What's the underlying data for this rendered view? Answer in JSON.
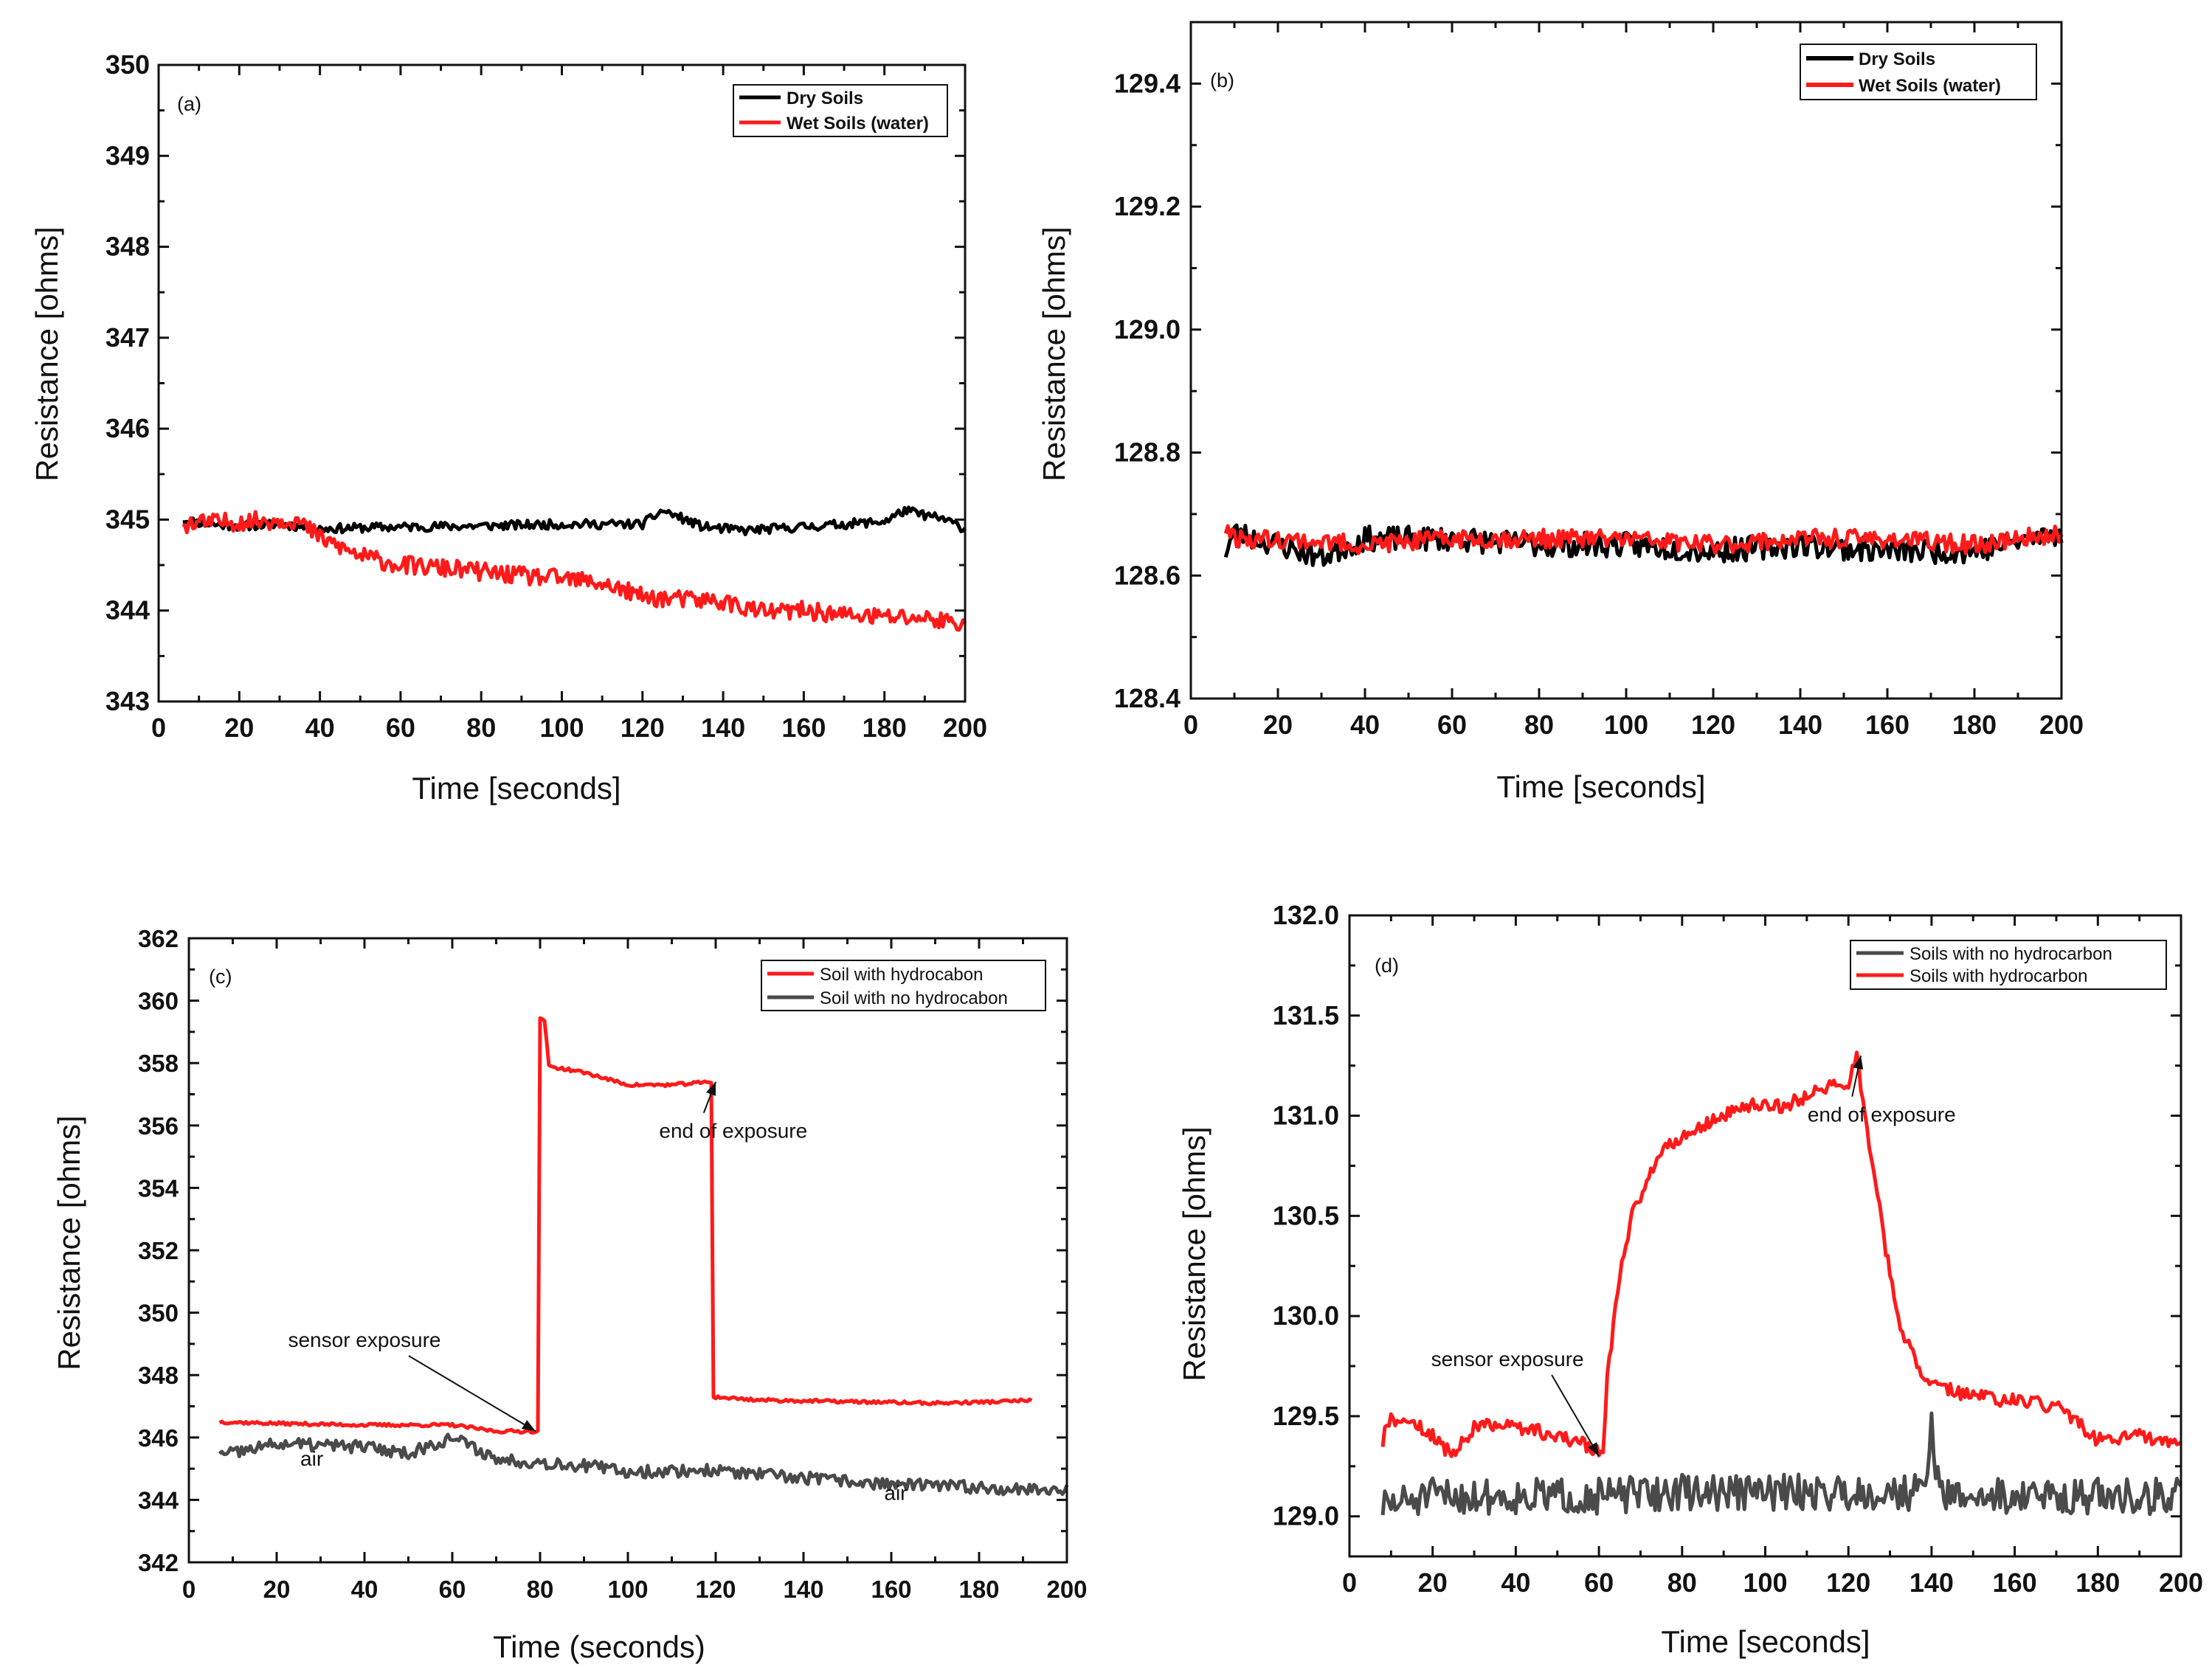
{
  "figure": {
    "panels": [
      "a",
      "b",
      "c",
      "d"
    ]
  },
  "chart_data": [
    {
      "type": "line",
      "panel_label": "(a)",
      "xlabel": "Time [seconds]",
      "ylabel": "Resistance [ohms]",
      "xlim": [
        0,
        200
      ],
      "ylim": [
        343,
        350
      ],
      "xticks": [
        0,
        20,
        40,
        60,
        80,
        100,
        120,
        140,
        160,
        180,
        200
      ],
      "yticks": [
        343,
        344,
        345,
        346,
        347,
        348,
        349,
        350
      ],
      "legend_position": "top-right",
      "noise_seed": 11,
      "series": [
        {
          "name": "Dry Soils",
          "color": "#000000",
          "noise": 0.05,
          "points": [
            [
              6,
              345.0
            ],
            [
              12,
              344.95
            ],
            [
              20,
              344.93
            ],
            [
              30,
              344.95
            ],
            [
              40,
              344.9
            ],
            [
              60,
              344.92
            ],
            [
              80,
              344.93
            ],
            [
              100,
              344.95
            ],
            [
              120,
              344.95
            ],
            [
              125,
              345.1
            ],
            [
              135,
              344.92
            ],
            [
              145,
              344.88
            ],
            [
              160,
              344.92
            ],
            [
              180,
              344.98
            ],
            [
              185,
              345.1
            ],
            [
              195,
              345.0
            ],
            [
              200,
              344.9
            ]
          ]
        },
        {
          "name": "Wet Soils (water)",
          "color": "#ff1a1a",
          "noise": 0.1,
          "points": [
            [
              6,
              344.95
            ],
            [
              20,
              344.98
            ],
            [
              34,
              345.0
            ],
            [
              40,
              344.8
            ],
            [
              50,
              344.6
            ],
            [
              60,
              344.5
            ],
            [
              75,
              344.45
            ],
            [
              90,
              344.38
            ],
            [
              100,
              344.35
            ],
            [
              110,
              344.3
            ],
            [
              120,
              344.15
            ],
            [
              130,
              344.12
            ],
            [
              140,
              344.1
            ],
            [
              150,
              343.98
            ],
            [
              160,
              344.0
            ],
            [
              170,
              343.95
            ],
            [
              180,
              343.93
            ],
            [
              190,
              343.92
            ],
            [
              200,
              343.85
            ]
          ]
        }
      ]
    },
    {
      "type": "line",
      "panel_label": "(b)",
      "xlabel": "Time [seconds]",
      "ylabel": "Resistance [ohms]",
      "xlim": [
        0,
        200
      ],
      "ylim": [
        128.4,
        129.5
      ],
      "xticks": [
        0,
        20,
        40,
        60,
        80,
        100,
        120,
        140,
        160,
        180,
        200
      ],
      "yticks": [
        128.4,
        128.6,
        128.8,
        129.0,
        129.2,
        129.4
      ],
      "legend_position": "top-right",
      "noise_seed": 23,
      "series": [
        {
          "name": "Dry Soils",
          "color": "#000000",
          "noise": 0.02,
          "points": [
            [
              8,
              128.64
            ],
            [
              10,
              128.67
            ],
            [
              20,
              128.65
            ],
            [
              30,
              128.63
            ],
            [
              40,
              128.66
            ],
            [
              60,
              128.66
            ],
            [
              80,
              128.65
            ],
            [
              100,
              128.65
            ],
            [
              120,
              128.64
            ],
            [
              140,
              128.65
            ],
            [
              160,
              128.64
            ],
            [
              180,
              128.64
            ],
            [
              200,
              128.67
            ]
          ]
        },
        {
          "name": "Wet Soils (water)",
          "color": "#ff1a1a",
          "noise": 0.015,
          "points": [
            [
              8,
              128.68
            ],
            [
              10,
              128.66
            ],
            [
              20,
              128.66
            ],
            [
              40,
              128.65
            ],
            [
              60,
              128.66
            ],
            [
              80,
              128.66
            ],
            [
              100,
              128.66
            ],
            [
              120,
              128.65
            ],
            [
              140,
              128.66
            ],
            [
              160,
              128.66
            ],
            [
              180,
              128.65
            ],
            [
              200,
              128.67
            ]
          ]
        }
      ]
    },
    {
      "type": "line",
      "panel_label": "(c)",
      "xlabel": "Time (seconds)",
      "ylabel": "Resistance [ohms]",
      "xlim": [
        0,
        200
      ],
      "ylim": [
        342,
        362
      ],
      "xticks": [
        0,
        20,
        40,
        60,
        80,
        100,
        120,
        140,
        160,
        180,
        200
      ],
      "yticks": [
        342,
        344,
        346,
        348,
        350,
        352,
        354,
        356,
        358,
        360,
        362
      ],
      "legend_position": "top-right",
      "noise_seed": 37,
      "series": [
        {
          "name": "Soil with hydrocabon",
          "color": "#ff1a1a",
          "noise": 0.05,
          "points": [
            [
              7,
              346.5
            ],
            [
              20,
              346.45
            ],
            [
              40,
              346.4
            ],
            [
              60,
              346.4
            ],
            [
              70,
              346.2
            ],
            [
              79.5,
              346.2
            ],
            [
              80,
              359.4
            ],
            [
              81,
              359.4
            ],
            [
              82,
              357.9
            ],
            [
              90,
              357.7
            ],
            [
              100,
              357.3
            ],
            [
              110,
              357.3
            ],
            [
              119,
              357.4
            ],
            [
              119.5,
              347.3
            ],
            [
              130,
              347.2
            ],
            [
              150,
              347.15
            ],
            [
              170,
              347.1
            ],
            [
              185,
              347.15
            ],
            [
              192,
              347.2
            ]
          ]
        },
        {
          "name": "Soil with no hydrocabon",
          "color": "#4a4a4a",
          "noise": 0.2,
          "points": [
            [
              7,
              345.4
            ],
            [
              20,
              345.8
            ],
            [
              40,
              345.7
            ],
            [
              50,
              345.5
            ],
            [
              60,
              346.0
            ],
            [
              66,
              345.6
            ],
            [
              70,
              345.3
            ],
            [
              80,
              345.2
            ],
            [
              90,
              345.1
            ],
            [
              100,
              344.9
            ],
            [
              120,
              344.95
            ],
            [
              130,
              344.8
            ],
            [
              140,
              344.7
            ],
            [
              160,
              344.5
            ],
            [
              180,
              344.4
            ],
            [
              200,
              344.3
            ]
          ]
        }
      ],
      "annotations": [
        {
          "text": "sensor exposure",
          "arrow_to": [
            79,
            346.2
          ],
          "text_at": [
            40,
            348.9
          ]
        },
        {
          "text": "end of exposure",
          "arrow_to": [
            120,
            357.4
          ],
          "text_at": [
            124,
            355.6
          ]
        },
        {
          "text": "air",
          "text_at": [
            28,
            345.1
          ]
        },
        {
          "text": "air",
          "text_at": [
            161,
            344.0
          ]
        }
      ]
    },
    {
      "type": "line",
      "panel_label": "(d)",
      "xlabel": "Time [seconds]",
      "ylabel": "Resistance [ohms]",
      "xlim": [
        0,
        200
      ],
      "ylim": [
        128.8,
        132.0
      ],
      "xticks": [
        0,
        20,
        40,
        60,
        80,
        100,
        120,
        140,
        160,
        180,
        200
      ],
      "yticks": [
        129.0,
        129.5,
        130.0,
        130.5,
        131.0,
        131.5,
        132.0
      ],
      "legend_position": "top-right",
      "noise_seed": 51,
      "series": [
        {
          "name": "Soils with no hydrocarbon",
          "color": "#4a4a4a",
          "noise": 0.09,
          "points": [
            [
              8,
              129.05
            ],
            [
              20,
              129.1
            ],
            [
              40,
              129.1
            ],
            [
              60,
              129.1
            ],
            [
              80,
              129.12
            ],
            [
              100,
              129.12
            ],
            [
              120,
              129.12
            ],
            [
              138,
              129.12
            ],
            [
              140,
              129.45
            ],
            [
              142,
              129.1
            ],
            [
              160,
              129.1
            ],
            [
              180,
              129.1
            ],
            [
              200,
              129.1
            ]
          ]
        },
        {
          "name": "Soils with hydrocarbon",
          "color": "#ff1a1a",
          "noise": 0.035,
          "points": [
            [
              8,
              129.35
            ],
            [
              9,
              129.48
            ],
            [
              15,
              129.48
            ],
            [
              20,
              129.4
            ],
            [
              25,
              129.3
            ],
            [
              30,
              129.45
            ],
            [
              40,
              129.45
            ],
            [
              50,
              129.4
            ],
            [
              58,
              129.35
            ],
            [
              61,
              129.3
            ],
            [
              62,
              129.7
            ],
            [
              65,
              130.2
            ],
            [
              68,
              130.5
            ],
            [
              72,
              130.7
            ],
            [
              76,
              130.85
            ],
            [
              85,
              130.95
            ],
            [
              95,
              131.05
            ],
            [
              105,
              131.05
            ],
            [
              115,
              131.15
            ],
            [
              120,
              131.15
            ],
            [
              122,
              131.3
            ],
            [
              124,
              131.0
            ],
            [
              127,
              130.6
            ],
            [
              130,
              130.2
            ],
            [
              133,
              129.9
            ],
            [
              137,
              129.75
            ],
            [
              140,
              129.65
            ],
            [
              150,
              129.6
            ],
            [
              170,
              129.55
            ],
            [
              180,
              129.38
            ],
            [
              190,
              129.4
            ],
            [
              200,
              129.35
            ]
          ]
        }
      ],
      "annotations": [
        {
          "text": "sensor exposure",
          "arrow_to": [
            60,
            129.3
          ],
          "text_at": [
            38,
            129.75
          ]
        },
        {
          "text": "end of exposure",
          "arrow_to": [
            123,
            131.3
          ],
          "text_at": [
            128,
            130.97
          ]
        }
      ]
    }
  ]
}
